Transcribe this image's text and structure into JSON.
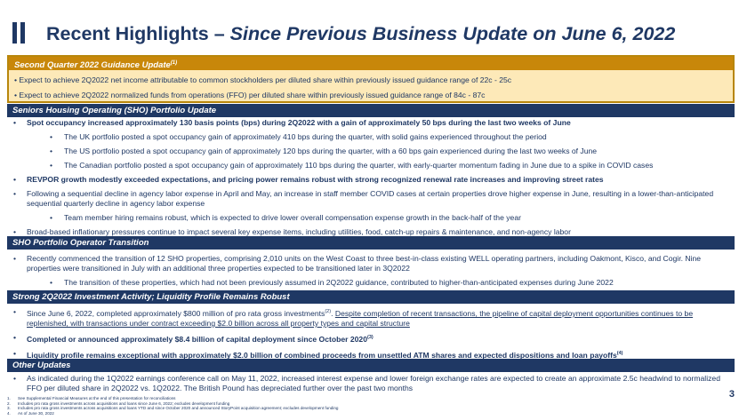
{
  "title": {
    "main": "Recent Highlights – ",
    "italic": "Since Previous Business Update on June 6, 2022"
  },
  "guidance": {
    "header": "Second Quarter 2022 Guidance Update",
    "header_note": "(1)",
    "items": [
      "Expect to achieve 2Q2022 net income attributable to common stockholders per diluted share within previously issued guidance range of 22c - 25c",
      "Expect to achieve 2Q2022 normalized funds from operations (FFO) per diluted share within previously issued guidance range of 84c - 87c"
    ]
  },
  "sho_portfolio": {
    "header": "Seniors Housing Operating (SHO) Portfolio Update",
    "items": [
      "Spot occupancy increased approximately 130 basis points (bps) during 2Q2022 with a gain of approximately 50 bps during the last two weeks of June",
      "The UK portfolio posted a spot occupancy gain of approximately 410 bps during the quarter, with solid gains experienced throughout the period",
      "The US portfolio posted a spot occupancy gain of approximately 120 bps during the quarter, with a 60 bps gain experienced during the last two weeks of June",
      "The Canadian portfolio posted a spot occupancy gain of approximately 110 bps during the quarter, with early-quarter momentum fading in June due to a spike in COVID cases",
      "REVPOR growth modestly exceeded expectations, and pricing power remains robust with strong recognized renewal rate increases and improving street rates",
      "Following a sequential decline in agency labor expense in April and May, an increase in staff member COVID cases at certain properties drove higher expense in June, resulting in a lower-than-anticipated sequential quarterly decline in agency labor expense",
      "Team member hiring remains robust, which is expected to drive lower overall compensation expense growth in the back-half of the year",
      "Broad-based inflationary pressures continue to impact several key expense items, including utilities, food, catch-up repairs & maintenance, and non-agency labor"
    ]
  },
  "operator_transition": {
    "header": "SHO Portfolio Operator Transition",
    "items": [
      "Recently commenced the transition of 12 SHO properties, comprising 2,010 units on the West Coast to three best-in-class existing WELL operating partners, including Oakmont, Kisco, and Cogir. Nine properties were transitioned in July with an additional three properties expected to be transitioned later in 3Q2022",
      "The transition of these properties, which had not been previously assumed in 2Q2022 guidance, contributed to higher-than-anticipated expenses during June 2022"
    ]
  },
  "investment": {
    "header": "Strong 2Q2022 Investment Activity; Liquidity Profile Remains Robust",
    "item1_plain": "Since June 6, 2022, completed approximately $800 million of pro rata gross investments",
    "item1_note": "(2)",
    "item1_sep": ". ",
    "item1_underlined": "Despite completion of recent transactions, the pipeline of capital deployment opportunities continues to be replenished, with transactions under contract exceeding $2.0 billion across all property types and capital structure",
    "item2": "Completed or announced approximately $8.4 billion of capital deployment since October 2020",
    "item2_note": "(3)",
    "item3": "Liquidity profile remains exceptional with approximately $2.0 billion of combined proceeds from unsettled ATM shares and expected dispositions and loan payoffs",
    "item3_note": "(4)"
  },
  "other": {
    "header": "Other Updates",
    "items": [
      "As indicated during the 1Q2022 earnings conference call on May 11, 2022, increased interest expense and lower foreign exchange rates are expected to create an approximate 2.5c headwind to normalized FFO per diluted share in 2Q2022 vs. 1Q2022.  The British Pound has depreciated further over the past two months"
    ]
  },
  "footnotes": [
    {
      "num": "1.",
      "text": "See Supplemental Financial Measures at the end of this presentation for reconciliations"
    },
    {
      "num": "2.",
      "text": "Includes pro rata gross investments across acquisitions and loans since June 6, 2022; excludes development funding"
    },
    {
      "num": "3.",
      "text": "Includes pro rata gross investments across acquisitions and loans YTD and since October 2020 and announced StoryPoint acquisition agreement; excludes development funding"
    },
    {
      "num": "4.",
      "text": "As of June 30, 2022"
    }
  ],
  "page_number": "3",
  "colors": {
    "navy": "#1f3864",
    "guidance_header": "#c8870a",
    "guidance_fill": "#fde9b8",
    "guidance_border": "#b8860b"
  }
}
